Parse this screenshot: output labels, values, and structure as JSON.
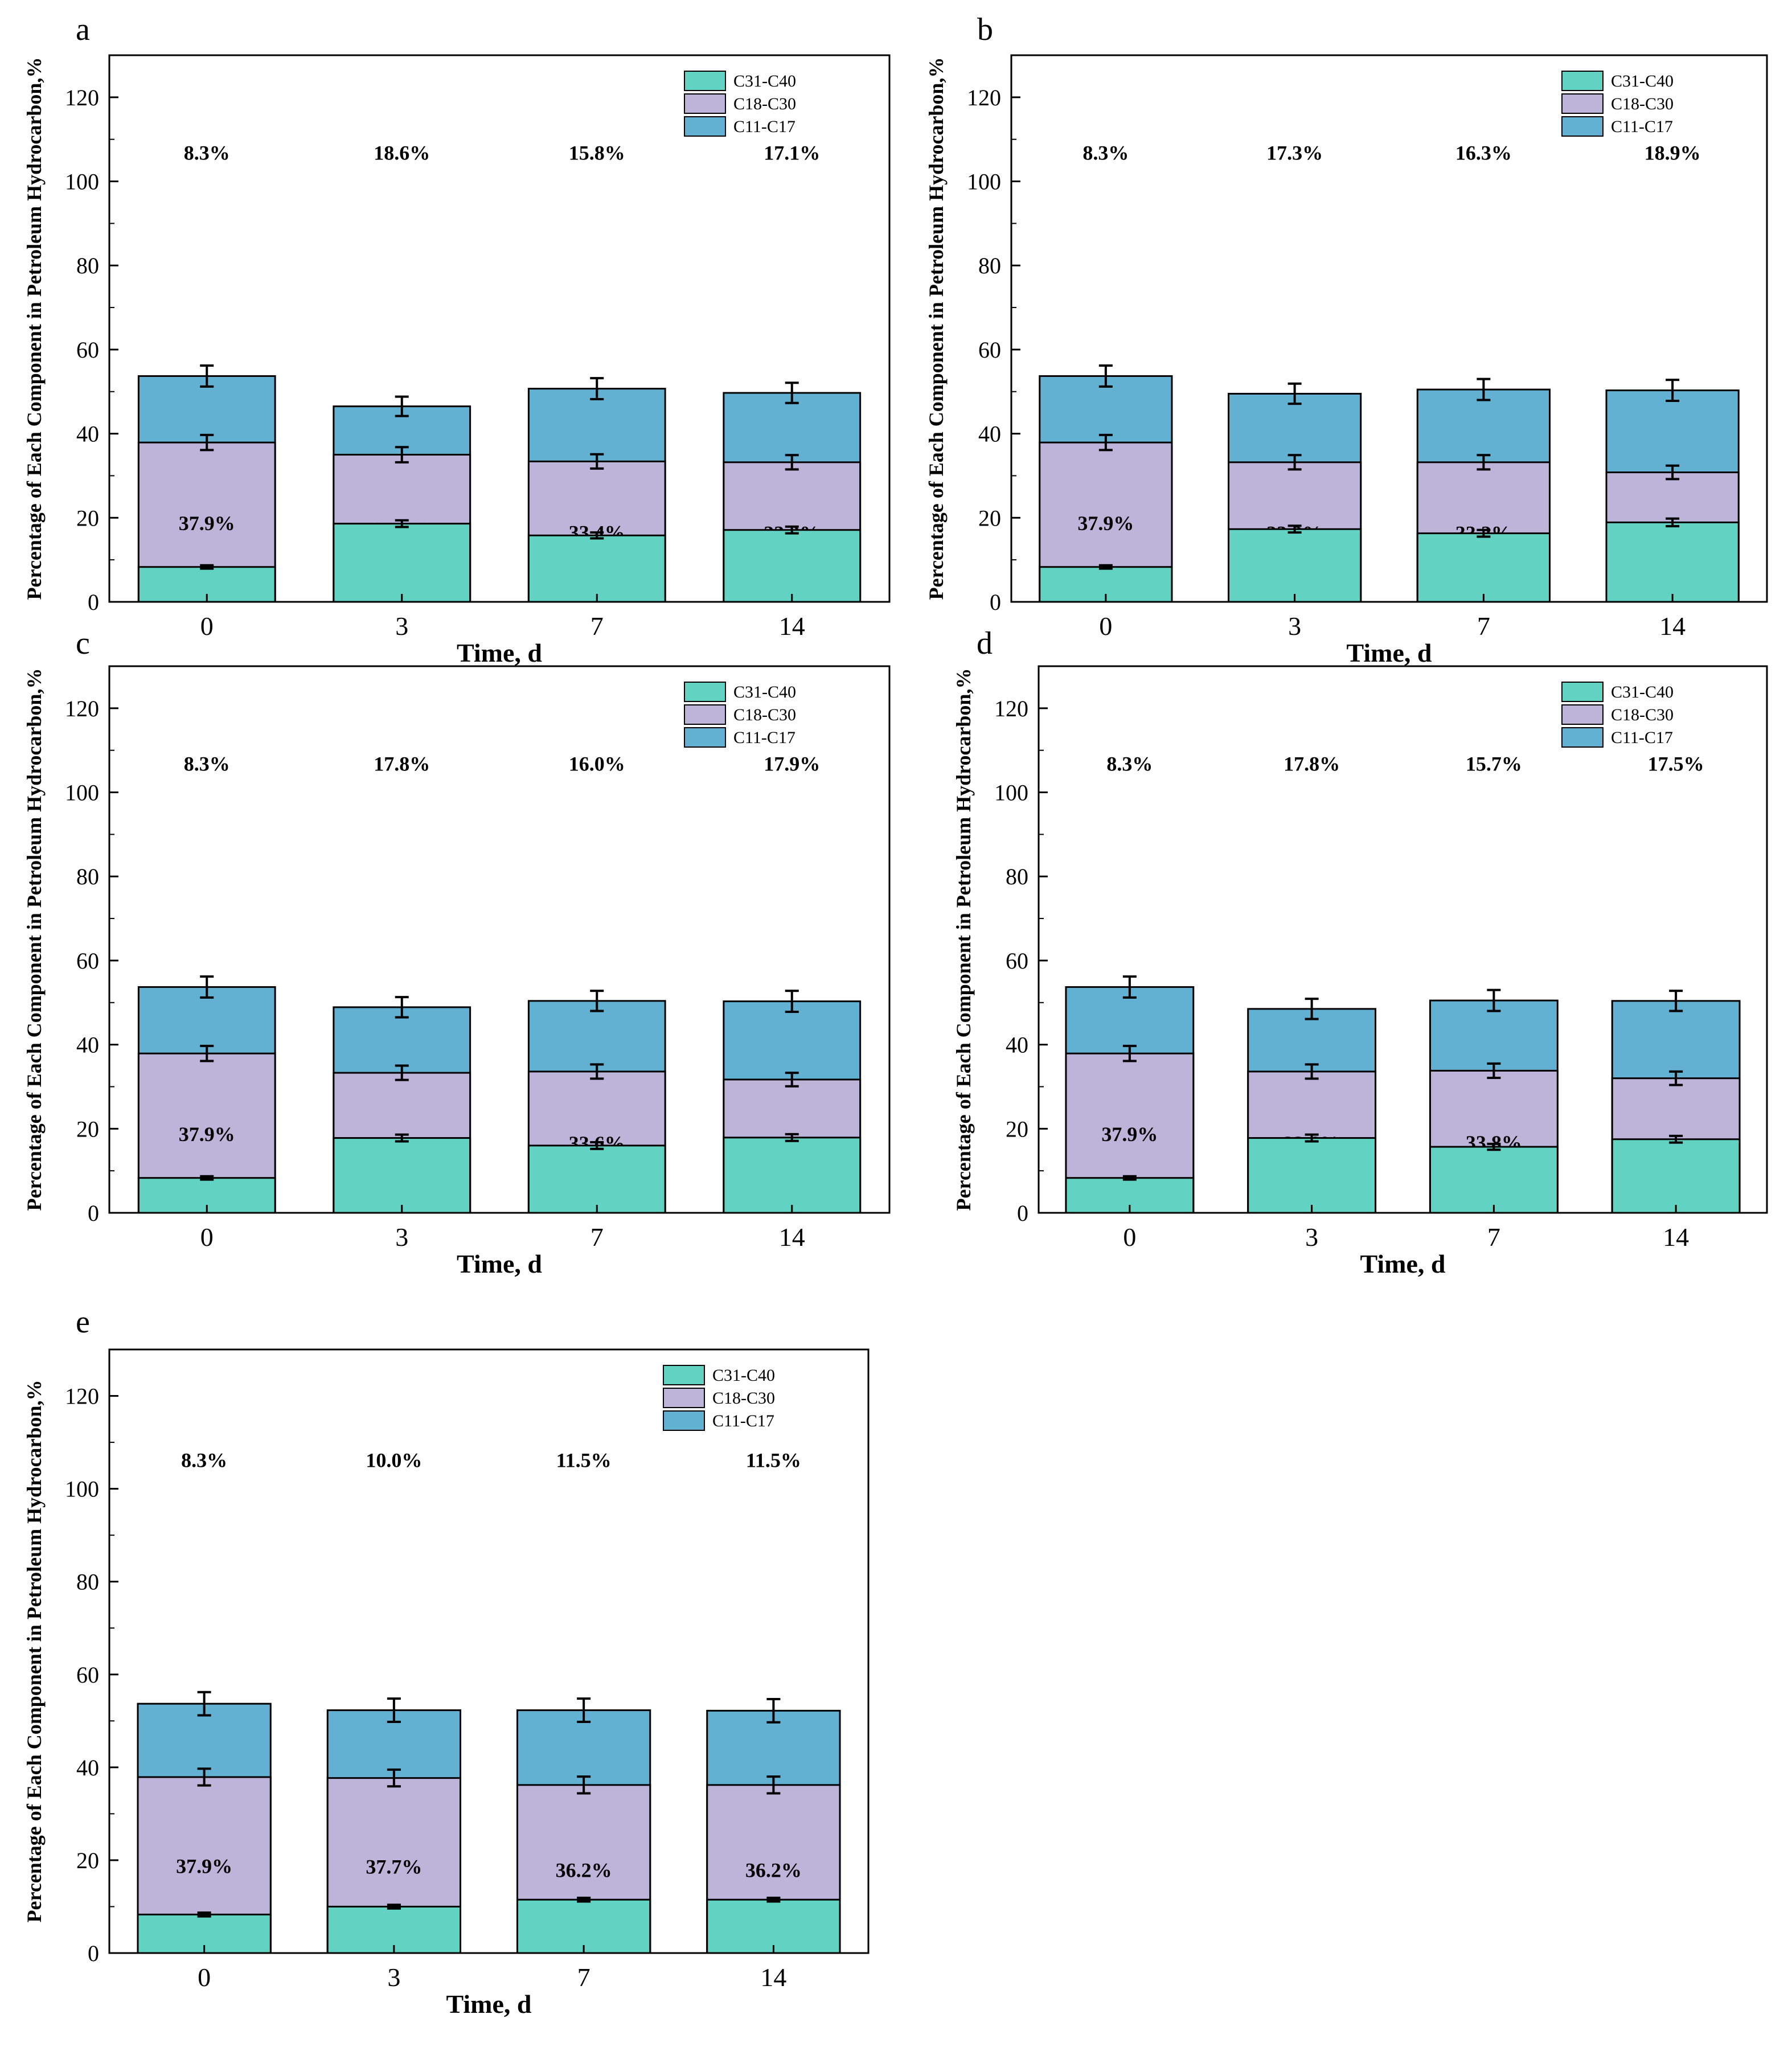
{
  "figure": {
    "colors": {
      "C11-C17": "#62b1d3",
      "C18-C30": "#bcb4d9",
      "C31-C40": "#62d3c3"
    }
  },
  "chart_data": [
    {
      "panel": "a",
      "type": "bar",
      "stacked": true,
      "categories": [
        "0",
        "3",
        "7",
        "14"
      ],
      "xlabel": "Time, d",
      "ylabel": "Percentage of Each Component in Petroleum Hydrocarbon,%",
      "ylim": [
        0,
        130
      ],
      "yticks": [
        0,
        20,
        40,
        60,
        80,
        100,
        120
      ],
      "legend": [
        "C31-C40",
        "C18-C30",
        "C11-C17"
      ],
      "legend_position": "top-right",
      "series": [
        {
          "name": "C11-C17",
          "values": [
            53.7,
            46.5,
            50.7,
            49.7
          ],
          "labels": [
            "53.7%",
            "46.5%",
            "50.7%",
            "49.7%"
          ]
        },
        {
          "name": "C18-C30",
          "values": [
            37.9,
            35.0,
            33.4,
            33.2
          ],
          "labels": [
            "37.9%",
            "35.0%",
            "33.4%",
            "33.2%"
          ]
        },
        {
          "name": "C31-C40",
          "values": [
            8.3,
            18.6,
            15.8,
            17.1
          ],
          "labels": [
            "8.3%",
            "18.6%",
            "15.8%",
            "17.1%"
          ]
        }
      ],
      "error_bars": {
        "C11-C17": [
          2.5,
          2.3,
          2.5,
          2.4
        ],
        "C18-C30": [
          1.8,
          1.8,
          1.7,
          1.7
        ],
        "C31-C40": [
          0.4,
          0.8,
          0.7,
          0.8
        ]
      }
    },
    {
      "panel": "b",
      "type": "bar",
      "stacked": true,
      "categories": [
        "0",
        "3",
        "7",
        "14"
      ],
      "xlabel": "Time, d",
      "ylabel": "Percentage of Each Component in Petroleum Hydrocarbon,%",
      "ylim": [
        0,
        130
      ],
      "yticks": [
        0,
        20,
        40,
        60,
        80,
        100,
        120
      ],
      "legend": [
        "C31-C40",
        "C18-C30",
        "C11-C17"
      ],
      "legend_position": "top-right",
      "series": [
        {
          "name": "C11-C17",
          "values": [
            53.7,
            49.5,
            50.5,
            50.3
          ],
          "labels": [
            "53.7%",
            "49.5%",
            "50.5%",
            "50.3%"
          ]
        },
        {
          "name": "C18-C30",
          "values": [
            37.9,
            33.2,
            33.2,
            30.8
          ],
          "labels": [
            "37.9%",
            "33.2%",
            "33.2%",
            "30.8%"
          ]
        },
        {
          "name": "C31-C40",
          "values": [
            8.3,
            17.3,
            16.3,
            18.9
          ],
          "labels": [
            "8.3%",
            "17.3%",
            "16.3%",
            "18.9%"
          ]
        }
      ],
      "error_bars": {
        "C11-C17": [
          2.5,
          2.4,
          2.5,
          2.5
        ],
        "C18-C30": [
          1.8,
          1.7,
          1.7,
          1.6
        ],
        "C31-C40": [
          0.4,
          0.8,
          0.8,
          0.9
        ]
      }
    },
    {
      "panel": "c",
      "type": "bar",
      "stacked": true,
      "categories": [
        "0",
        "3",
        "7",
        "14"
      ],
      "xlabel": "Time, d",
      "ylabel": "Percentage of Each Component in Petroleum Hydrocarbon,%",
      "ylim": [
        0,
        130
      ],
      "yticks": [
        0,
        20,
        40,
        60,
        80,
        100,
        120
      ],
      "legend": [
        "C31-C40",
        "C18-C30",
        "C11-C17"
      ],
      "legend_position": "top-right",
      "series": [
        {
          "name": "C11-C17",
          "values": [
            53.7,
            48.9,
            50.4,
            50.3
          ],
          "labels": [
            "53.7%",
            "48.9%",
            "50.4%",
            "50.3%"
          ]
        },
        {
          "name": "C18-C30",
          "values": [
            37.9,
            33.3,
            33.6,
            31.7
          ],
          "labels": [
            "37.9%",
            "33.3%",
            "33.6%",
            "31.7%"
          ]
        },
        {
          "name": "C31-C40",
          "values": [
            8.3,
            17.8,
            16.0,
            17.9
          ],
          "labels": [
            "8.3%",
            "17.8%",
            "16.0%",
            "17.9%"
          ]
        }
      ],
      "error_bars": {
        "C11-C17": [
          2.5,
          2.4,
          2.4,
          2.5
        ],
        "C18-C30": [
          1.8,
          1.7,
          1.7,
          1.6
        ],
        "C31-C40": [
          0.4,
          0.8,
          0.8,
          0.8
        ]
      }
    },
    {
      "panel": "d",
      "type": "bar",
      "stacked": true,
      "categories": [
        "0",
        "3",
        "7",
        "14"
      ],
      "xlabel": "Time, d",
      "ylabel": "Percentage of Each Component in Petroleum Hydrocarbon,%",
      "ylim": [
        0,
        130
      ],
      "yticks": [
        0,
        20,
        40,
        60,
        80,
        100,
        120
      ],
      "legend": [
        "C31-C40",
        "C18-C30",
        "C11-C17"
      ],
      "legend_position": "top-right",
      "series": [
        {
          "name": "C11-C17",
          "values": [
            53.7,
            48.5,
            50.5,
            50.4
          ],
          "labels": [
            "53.7%",
            "48.5%",
            "50.5%",
            "50.4%"
          ]
        },
        {
          "name": "C18-C30",
          "values": [
            37.9,
            33.6,
            33.8,
            32.0
          ],
          "labels": [
            "37.9%",
            "33.6%",
            "33.8%",
            "32.0%"
          ]
        },
        {
          "name": "C31-C40",
          "values": [
            8.3,
            17.8,
            15.7,
            17.5
          ],
          "labels": [
            "8.3%",
            "17.8%",
            "15.7%",
            "17.5%"
          ]
        }
      ],
      "error_bars": {
        "C11-C17": [
          2.5,
          2.4,
          2.5,
          2.4
        ],
        "C18-C30": [
          1.8,
          1.7,
          1.7,
          1.6
        ],
        "C31-C40": [
          0.4,
          0.8,
          0.7,
          0.8
        ]
      }
    },
    {
      "panel": "e",
      "type": "bar",
      "stacked": true,
      "categories": [
        "0",
        "3",
        "7",
        "14"
      ],
      "xlabel": "Time, d",
      "ylabel": "Percentage of Each Component in Petroleum Hydrocarbon,%",
      "ylim": [
        0,
        130
      ],
      "yticks": [
        0,
        20,
        40,
        60,
        80,
        100,
        120
      ],
      "legend": [
        "C31-C40",
        "C18-C30",
        "C11-C17"
      ],
      "legend_position": "top-right",
      "series": [
        {
          "name": "C11-C17",
          "values": [
            53.7,
            52.3,
            52.3,
            52.2
          ],
          "labels": [
            "53.7%",
            "52.3%",
            "52.3%",
            "52.2%"
          ]
        },
        {
          "name": "C18-C30",
          "values": [
            37.9,
            37.7,
            36.2,
            36.2
          ],
          "labels": [
            "37.9%",
            "37.7%",
            "36.2%",
            "36.2%"
          ]
        },
        {
          "name": "C31-C40",
          "values": [
            8.3,
            10.0,
            11.5,
            11.5
          ],
          "labels": [
            "8.3%",
            "10.0%",
            "11.5%",
            "11.5%"
          ]
        }
      ],
      "error_bars": {
        "C11-C17": [
          2.5,
          2.5,
          2.5,
          2.5
        ],
        "C18-C30": [
          1.8,
          1.8,
          1.8,
          1.8
        ],
        "C31-C40": [
          0.4,
          0.4,
          0.4,
          0.4
        ]
      }
    }
  ]
}
